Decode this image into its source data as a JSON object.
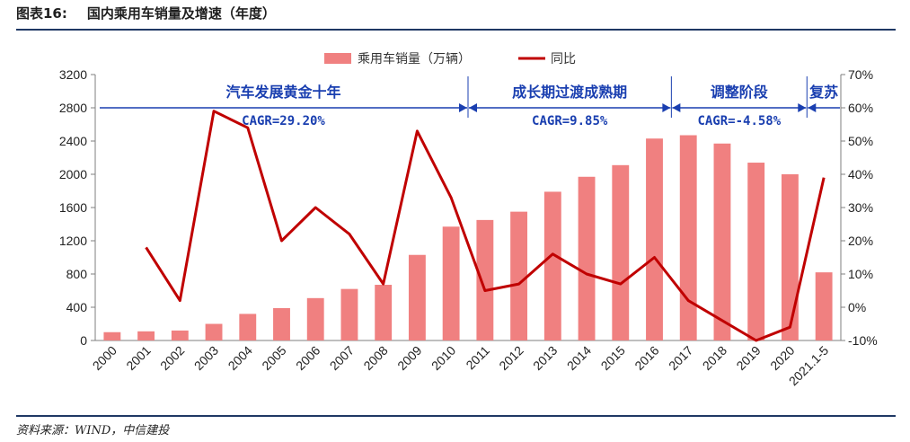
{
  "figure": {
    "title_prefix": "图表16:",
    "title": "国内乘用车销量及增速（年度）",
    "source": "资料来源：WIND，中信建投"
  },
  "colors": {
    "bar": "#f08080",
    "line": "#c00000",
    "annotation": "#1a3fb0",
    "rule": "#1f3864"
  },
  "chart_data": {
    "type": "bar",
    "title": "",
    "xlabel": "",
    "ylabel": "",
    "categories": [
      "2000",
      "2001",
      "2002",
      "2003",
      "2004",
      "2005",
      "2006",
      "2007",
      "2008",
      "2009",
      "2010",
      "2011",
      "2012",
      "2013",
      "2014",
      "2015",
      "2016",
      "2017",
      "2018",
      "2019",
      "2020",
      "2021.1-5"
    ],
    "series": [
      {
        "name": "乘用车销量（万辆）",
        "type": "bar",
        "axis": "left",
        "values": [
          100,
          110,
          120,
          200,
          320,
          390,
          510,
          620,
          670,
          1030,
          1370,
          1450,
          1550,
          1790,
          1970,
          2110,
          2430,
          2470,
          2370,
          2140,
          2000,
          820
        ]
      },
      {
        "name": "同比",
        "type": "line",
        "axis": "right",
        "values": [
          null,
          18,
          2,
          59,
          54,
          20,
          30,
          22,
          7,
          53,
          33,
          5,
          7,
          16,
          10,
          7,
          15,
          2,
          -4,
          -10,
          -6,
          39
        ]
      }
    ],
    "ylim_left": [
      0,
      3200
    ],
    "yticks_left": [
      0,
      400,
      800,
      1200,
      1600,
      2000,
      2400,
      2800,
      3200
    ],
    "ylim_right": [
      -10,
      70
    ],
    "yticks_right": [
      "-10%",
      "0%",
      "10%",
      "20%",
      "30%",
      "40%",
      "50%",
      "60%",
      "70%"
    ],
    "legend_position": "top-center",
    "grid": false,
    "phases": [
      {
        "label": "汽车发展黄金十年",
        "cagr": "CAGR=29.20%",
        "from": "2000",
        "to": "2010"
      },
      {
        "label": "成长期过渡成熟期",
        "cagr": "CAGR=9.85%",
        "from": "2010",
        "to": "2016"
      },
      {
        "label": "调整阶段",
        "cagr": "CAGR=-4.58%",
        "from": "2016",
        "to": "2020"
      },
      {
        "label": "复苏",
        "cagr": "",
        "from": "2020",
        "to": "2021.1-5"
      }
    ]
  }
}
